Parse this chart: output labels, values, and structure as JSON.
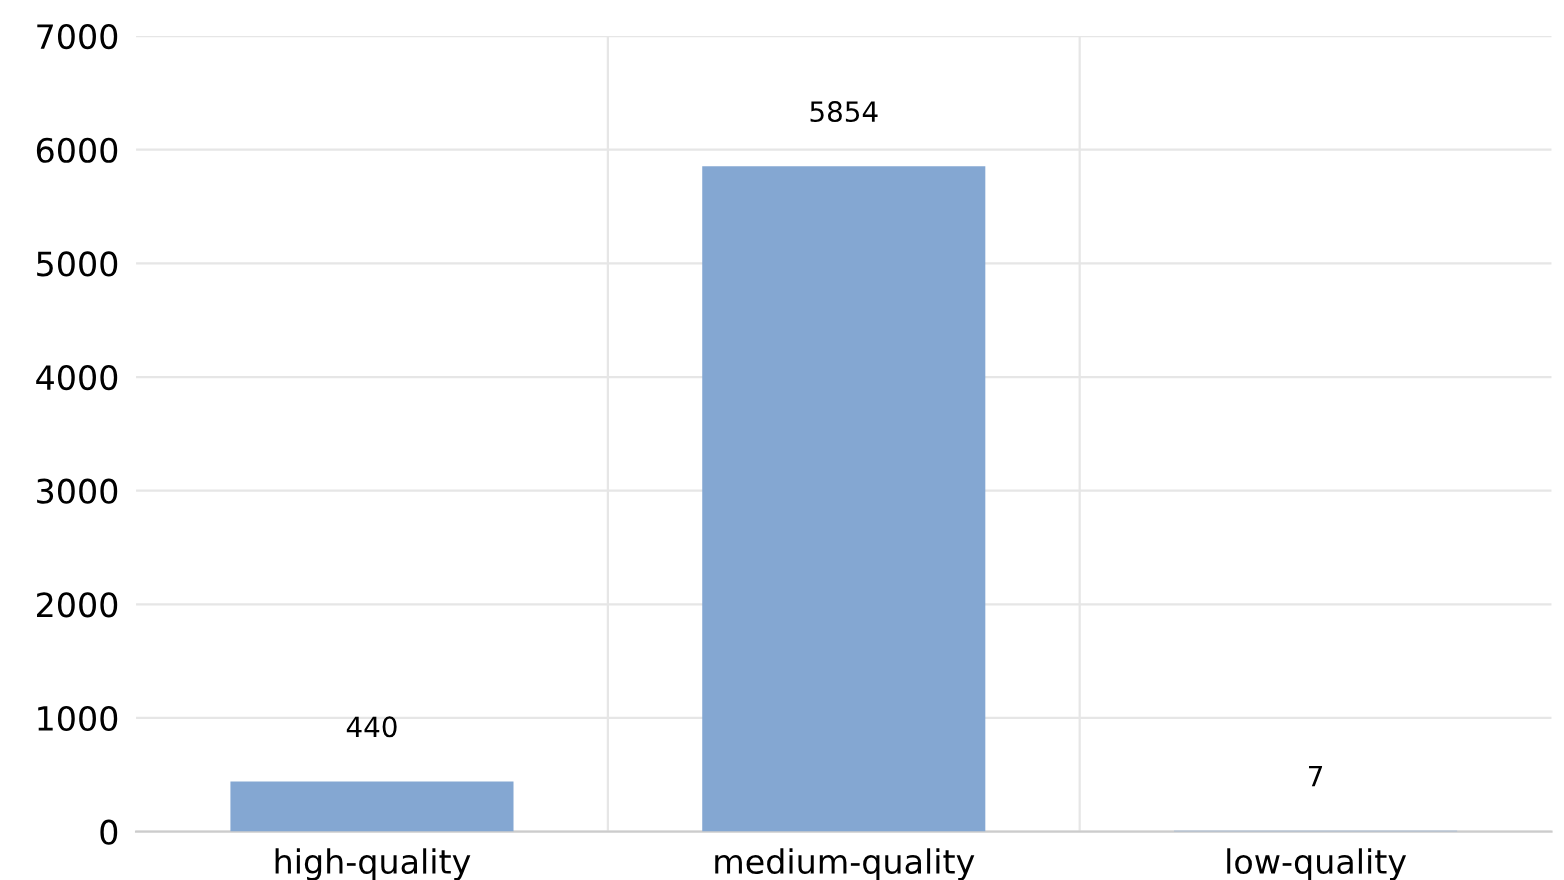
{
  "chart_data": {
    "type": "bar",
    "categories": [
      "high-quality",
      "medium-quality",
      "low-quality"
    ],
    "values": [
      440,
      5854,
      7
    ],
    "color": "#84a7d2",
    "ylim": [
      0,
      7000
    ],
    "yticks": [
      0,
      1000,
      2000,
      3000,
      4000,
      5000,
      6000,
      7000
    ],
    "grid": true,
    "data_labels": true
  }
}
